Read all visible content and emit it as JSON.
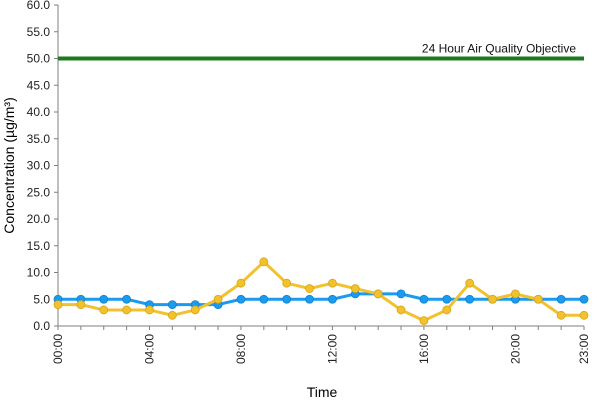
{
  "chart_data": {
    "type": "line",
    "xlabel": "Time",
    "ylabel": "Concentration (µg/m³)",
    "ylim": [
      0,
      60
    ],
    "yticks": [
      "0.0",
      "5.0",
      "10.0",
      "15.0",
      "20.0",
      "25.0",
      "30.0",
      "35.0",
      "40.0",
      "45.0",
      "50.0",
      "55.0",
      "60.0"
    ],
    "x": [
      "00:00",
      "01:00",
      "02:00",
      "03:00",
      "04:00",
      "05:00",
      "06:00",
      "07:00",
      "08:00",
      "09:00",
      "10:00",
      "11:00",
      "12:00",
      "13:00",
      "14:00",
      "15:00",
      "16:00",
      "17:00",
      "18:00",
      "19:00",
      "20:00",
      "21:00",
      "22:00",
      "23:00"
    ],
    "xtick_labels": [
      "00:00",
      "04:00",
      "08:00",
      "12:00",
      "16:00",
      "20:00",
      "23:00"
    ],
    "series": [
      {
        "color": "#1a9bf0",
        "values": [
          5,
          5,
          5,
          5,
          4,
          4,
          4,
          4,
          5,
          5,
          5,
          5,
          5,
          6,
          6,
          6,
          5,
          5,
          5,
          5,
          5,
          5,
          5,
          5
        ]
      },
      {
        "color": "#f2c12e",
        "values": [
          4,
          4,
          3,
          3,
          3,
          2,
          3,
          5,
          8,
          12,
          8,
          7,
          8,
          7,
          6,
          3,
          1,
          3,
          8,
          5,
          6,
          5,
          2,
          2
        ]
      }
    ],
    "reference_line": {
      "value": 50,
      "label": "24 Hour Air Quality Objective",
      "color": "#1f7a1f"
    },
    "grid": false,
    "legend": "none"
  }
}
